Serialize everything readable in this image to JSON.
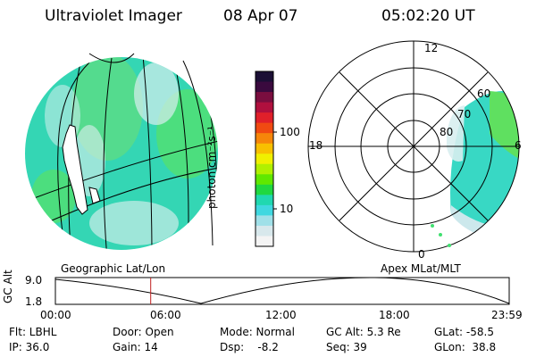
{
  "header": {
    "instrument": "Ultraviolet Imager",
    "date": "08 Apr 07",
    "time": "05:02:20 UT"
  },
  "colorbar": {
    "unit": "photon cm⁻²s⁻¹",
    "ticks": [
      "100",
      "10"
    ],
    "colors": [
      "#1b0f35",
      "#3a0a3e",
      "#7a0e3f",
      "#b0103e",
      "#e0202a",
      "#f04a12",
      "#f6860a",
      "#f8c000",
      "#f0f000",
      "#b0f000",
      "#60e800",
      "#20d840",
      "#20d8b0",
      "#40d8e0",
      "#a0e0e8",
      "#d8e8ec",
      "#f4f4f4"
    ]
  },
  "polar_plot": {
    "mlt_labels": {
      "top": "12",
      "left": "18",
      "right": "6",
      "bottom": "0"
    },
    "lat_labels": [
      "80",
      "70",
      "60"
    ]
  },
  "map_labels": {
    "left": "Geographic Lat/Lon",
    "right": "Apex MLat/MLT"
  },
  "timeline": {
    "ylabel": "GC Alt",
    "yticks": [
      "9.0",
      "1.8"
    ],
    "xticks": [
      "00:00",
      "06:00",
      "12:00",
      "18:00",
      "23:59"
    ],
    "current_marker_hours": 5.04
  },
  "info": {
    "flt": "Flt: LBHL",
    "ip": "IP: 36.0",
    "door": "Door: Open",
    "gain": "Gain: 14",
    "mode": "Mode: Normal",
    "dsp": "Dsp:    -8.2",
    "gcalt": "GC Alt: 5.3 Re",
    "seq": "Seq: 39",
    "glat": "GLat: -58.5",
    "glon": "GLon:  38.8"
  }
}
